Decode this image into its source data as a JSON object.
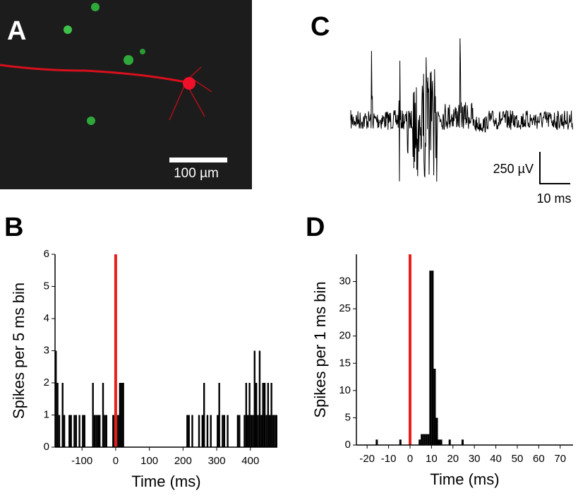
{
  "image_panel": {
    "label": "A",
    "scale_bar": "100 µm"
  },
  "trace_panel": {
    "label": "C",
    "scale_voltage": "250 µV",
    "scale_time": "10 ms"
  },
  "chart_data": [
    {
      "type": "histogram",
      "label": "B",
      "xlabel": "Time (ms)",
      "ylabel": "Spikes per 5 ms bin",
      "color": "#000000",
      "event_x": 0,
      "event_color": "#e8201c",
      "xlim": [
        -180,
        480
      ],
      "ylim": [
        0,
        6
      ],
      "xticks": [
        -100,
        0,
        100,
        200,
        300,
        400
      ],
      "yticks": [
        0,
        1,
        2,
        3,
        4,
        5,
        6
      ],
      "bins": [
        -180,
        -175,
        -170,
        -165,
        -160,
        -155,
        -150,
        -145,
        -140,
        -135,
        -130,
        -125,
        -120,
        -115,
        -110,
        -105,
        -100,
        -95,
        -90,
        -85,
        -80,
        -75,
        -70,
        -65,
        -60,
        -55,
        -50,
        -45,
        -40,
        -35,
        -30,
        -25,
        -20,
        -15,
        -10,
        -5,
        0,
        5,
        10,
        15,
        20,
        25,
        30,
        35,
        40,
        45,
        50,
        55,
        60,
        65,
        70,
        75,
        80,
        85,
        90,
        95,
        100,
        105,
        110,
        115,
        120,
        125,
        130,
        135,
        140,
        145,
        150,
        155,
        160,
        165,
        170,
        175,
        180,
        185,
        190,
        195,
        200,
        205,
        210,
        215,
        220,
        225,
        230,
        235,
        240,
        245,
        250,
        255,
        260,
        265,
        270,
        275,
        280,
        285,
        290,
        295,
        300,
        305,
        310,
        315,
        320,
        325,
        330,
        335,
        340,
        345,
        350,
        355,
        360,
        365,
        370,
        375,
        380,
        385,
        390,
        395,
        400,
        405,
        410,
        415,
        420,
        425,
        430,
        435,
        440,
        445,
        450,
        455,
        460,
        465,
        470,
        475,
        480
      ],
      "counts": [
        3,
        2,
        1,
        0,
        2,
        1,
        0,
        0,
        1,
        1,
        0,
        1,
        1,
        0,
        1,
        0,
        1,
        1,
        0,
        0,
        0,
        0,
        2,
        1,
        1,
        1,
        1,
        0,
        2,
        1,
        1,
        0,
        0,
        0,
        1,
        1,
        1,
        1,
        2,
        2,
        2,
        0,
        0,
        0,
        0,
        0,
        0,
        0,
        0,
        0,
        0,
        0,
        0,
        0,
        0,
        0,
        0,
        0,
        0,
        0,
        0,
        0,
        0,
        0,
        0,
        0,
        0,
        0,
        0,
        0,
        0,
        0,
        0,
        0,
        0,
        0,
        0,
        0,
        1,
        1,
        0,
        1,
        0,
        0,
        0,
        1,
        0,
        1,
        2,
        0,
        1,
        0,
        1,
        0,
        0,
        0,
        1,
        2,
        0,
        1,
        1,
        0,
        1,
        0,
        0,
        0,
        0,
        0,
        1,
        1,
        0,
        0,
        1,
        2,
        1,
        2,
        1,
        1,
        3,
        2,
        1,
        3,
        1,
        2,
        2,
        1,
        2,
        1,
        2,
        1,
        1,
        1
      ]
    },
    {
      "type": "histogram",
      "label": "D",
      "xlabel": "Time (ms)",
      "ylabel": "Spikes per 1 ms bin",
      "color": "#000000",
      "event_x": 0,
      "event_color": "#e8201c",
      "xlim": [
        -25,
        76
      ],
      "ylim": [
        0,
        35
      ],
      "xticks": [
        -20,
        -10,
        0,
        10,
        20,
        30,
        40,
        50,
        60,
        70
      ],
      "yticks": [
        0,
        5,
        10,
        15,
        20,
        25,
        30
      ],
      "bins": [
        -20,
        -19,
        -18,
        -17,
        -16,
        -15,
        -14,
        -13,
        -12,
        -11,
        -10,
        -9,
        -8,
        -7,
        -6,
        -5,
        -4,
        -3,
        -2,
        -1,
        0,
        1,
        2,
        3,
        4,
        5,
        6,
        7,
        8,
        9,
        10,
        11,
        12,
        13,
        14,
        15,
        16,
        17,
        18,
        19,
        20,
        21,
        22,
        23,
        24,
        25,
        26,
        27,
        28,
        29,
        30
      ],
      "counts": [
        0,
        0,
        0,
        0,
        1,
        0,
        0,
        0,
        0,
        0,
        0,
        0,
        0,
        0,
        0,
        1,
        0,
        0,
        0,
        0,
        0,
        0,
        0,
        0,
        1,
        2,
        2,
        2,
        2,
        32,
        32,
        14,
        5,
        1,
        1,
        0,
        0,
        0,
        1,
        0,
        0,
        0,
        0,
        0,
        1,
        0,
        0,
        0,
        0,
        0
      ]
    }
  ]
}
